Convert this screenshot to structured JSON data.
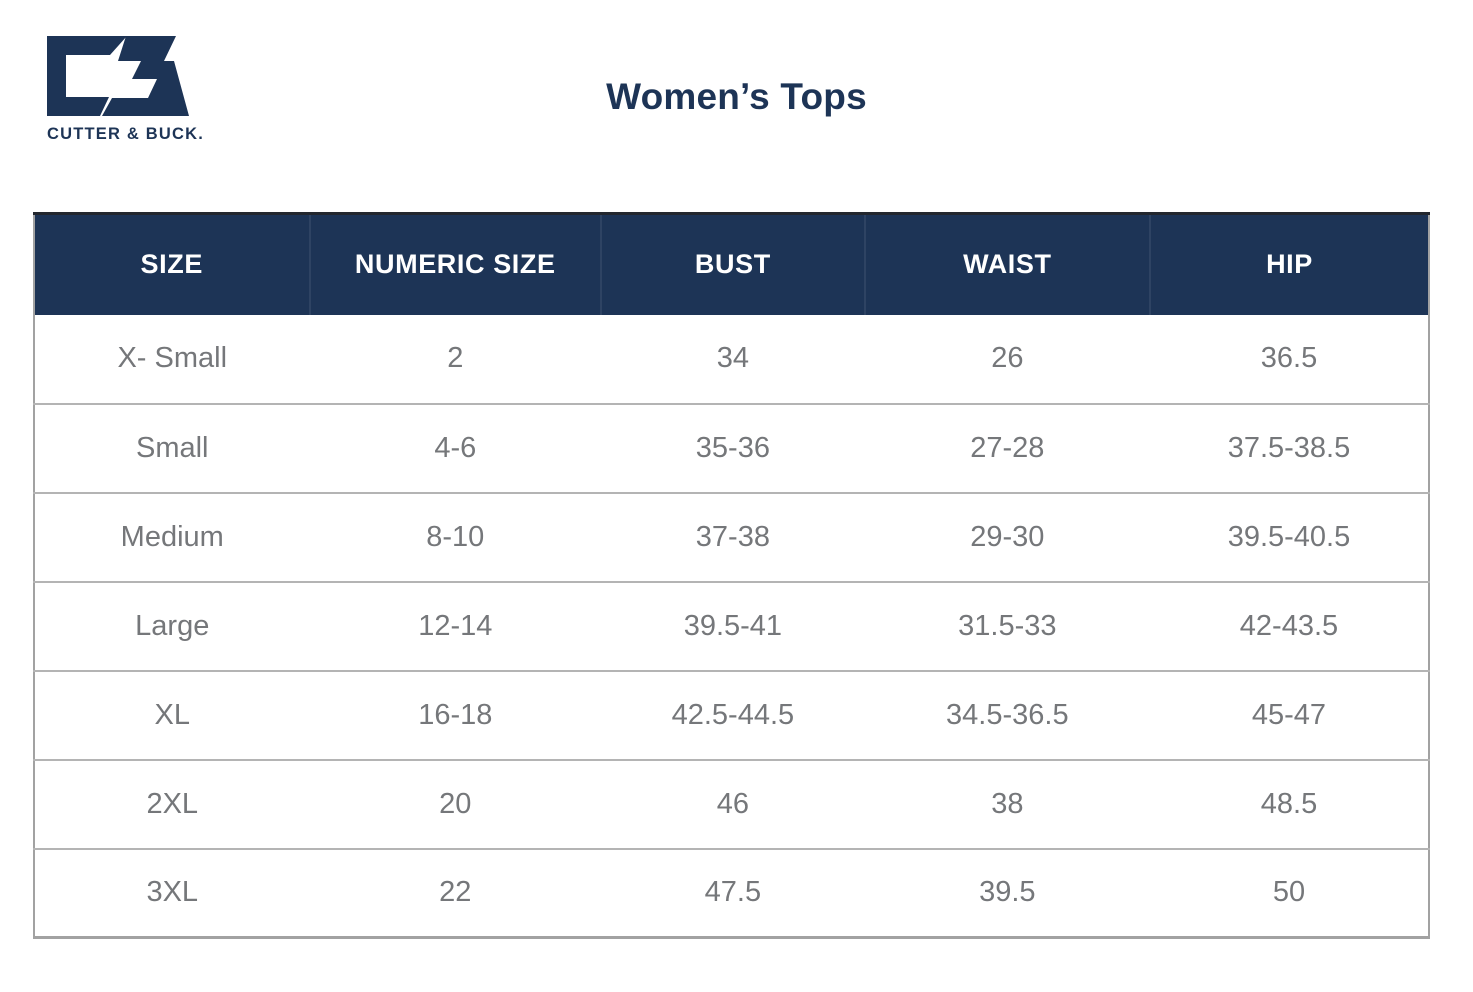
{
  "brand": {
    "logo_icon": "cutter-buck-cb-monogram",
    "logo_wordmark": "CUTTER & BUCK."
  },
  "page": {
    "title": "Women’s Tops"
  },
  "colors": {
    "navy": "#1d3456",
    "header_text": "#ffffff",
    "body_text": "#75777a",
    "row_divider": "#b4b4b4",
    "table_outer_border": "#a2a2a2",
    "table_top_border": "#23272e",
    "background": "#ffffff"
  },
  "size_chart": {
    "columns": [
      "SIZE",
      "NUMERIC SIZE",
      "BUST",
      "WAIST",
      "HIP"
    ],
    "rows": [
      [
        "X- Small",
        "2",
        "34",
        "26",
        "36.5"
      ],
      [
        "Small",
        "4-6",
        "35-36",
        "27-28",
        "37.5-38.5"
      ],
      [
        "Medium",
        "8-10",
        "37-38",
        "29-30",
        "39.5-40.5"
      ],
      [
        "Large",
        "12-14",
        "39.5-41",
        "31.5-33",
        "42-43.5"
      ],
      [
        "XL",
        "16-18",
        "42.5-44.5",
        "34.5-36.5",
        "45-47"
      ],
      [
        "2XL",
        "20",
        "46",
        "38",
        "48.5"
      ],
      [
        "3XL",
        "22",
        "47.5",
        "39.5",
        "50"
      ]
    ]
  }
}
